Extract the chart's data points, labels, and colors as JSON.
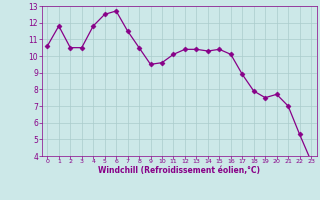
{
  "x": [
    0,
    1,
    2,
    3,
    4,
    5,
    6,
    7,
    8,
    9,
    10,
    11,
    12,
    13,
    14,
    15,
    16,
    17,
    18,
    19,
    20,
    21,
    22,
    23
  ],
  "y": [
    10.6,
    11.8,
    10.5,
    10.5,
    11.8,
    12.5,
    12.7,
    11.5,
    10.5,
    9.5,
    9.6,
    10.1,
    10.4,
    10.4,
    10.3,
    10.4,
    10.1,
    8.9,
    7.9,
    7.5,
    7.7,
    7.0,
    5.3,
    3.7
  ],
  "line_color": "#880088",
  "marker": "D",
  "marker_size": 2.5,
  "bg_color": "#cce8e8",
  "grid_color": "#aacccc",
  "xlabel": "Windchill (Refroidissement éolien,°C)",
  "xlabel_color": "#880088",
  "ylim": [
    4,
    13
  ],
  "xlim": [
    -0.5,
    23.5
  ],
  "yticks": [
    4,
    5,
    6,
    7,
    8,
    9,
    10,
    11,
    12,
    13
  ],
  "xticks": [
    0,
    1,
    2,
    3,
    4,
    5,
    6,
    7,
    8,
    9,
    10,
    11,
    12,
    13,
    14,
    15,
    16,
    17,
    18,
    19,
    20,
    21,
    22,
    23
  ]
}
